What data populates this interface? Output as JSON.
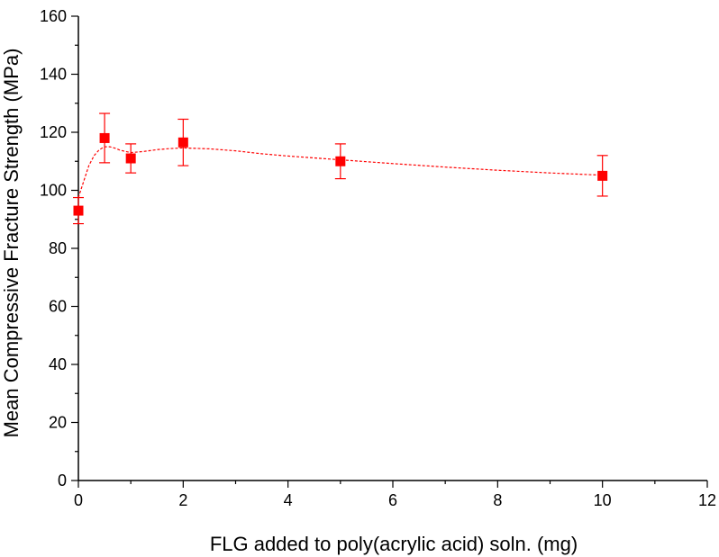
{
  "chart_data": {
    "type": "scatter",
    "title": "",
    "xlabel": "FLG added to poly(acrylic acid) soln. (mg)",
    "ylabel": "Mean Compressive Fracture Strength (MPa)",
    "xlim": [
      0,
      12
    ],
    "ylim": [
      0,
      160
    ],
    "x_ticks": [
      0,
      2,
      4,
      6,
      8,
      10,
      12
    ],
    "y_ticks": [
      0,
      20,
      40,
      60,
      80,
      100,
      120,
      140,
      160
    ],
    "x_tick_labels": [
      "0",
      "2",
      "4",
      "6",
      "8",
      "10",
      "12"
    ],
    "y_tick_labels": [
      "0",
      "20",
      "40",
      "60",
      "80",
      "100",
      "120",
      "140",
      "160"
    ],
    "grid": false,
    "series": [
      {
        "name": "Mean compressive fracture strength",
        "marker": "square",
        "color": "#ff0000",
        "x": [
          0,
          0.5,
          1,
          2,
          5,
          10
        ],
        "y": [
          93,
          118,
          111,
          116.5,
          110,
          105
        ],
        "error": [
          4.5,
          8.5,
          5,
          8,
          6,
          7
        ]
      }
    ],
    "fit_curve": {
      "style": "dashed spline",
      "color": "#ff0000",
      "x": [
        0,
        0.1,
        0.2,
        0.3,
        0.4,
        0.5,
        0.6,
        0.7,
        0.8,
        1,
        1.25,
        1.5,
        1.75,
        2,
        2.5,
        3,
        3.5,
        4,
        5,
        6,
        7,
        8,
        9,
        10
      ],
      "y": [
        97.5,
        103,
        108.5,
        112,
        114,
        115,
        115,
        114.5,
        113.8,
        113,
        113.4,
        114,
        114.4,
        114.6,
        114.3,
        113.6,
        112.6,
        111.8,
        110.5,
        109.2,
        108,
        106.9,
        106,
        105.2
      ]
    }
  }
}
